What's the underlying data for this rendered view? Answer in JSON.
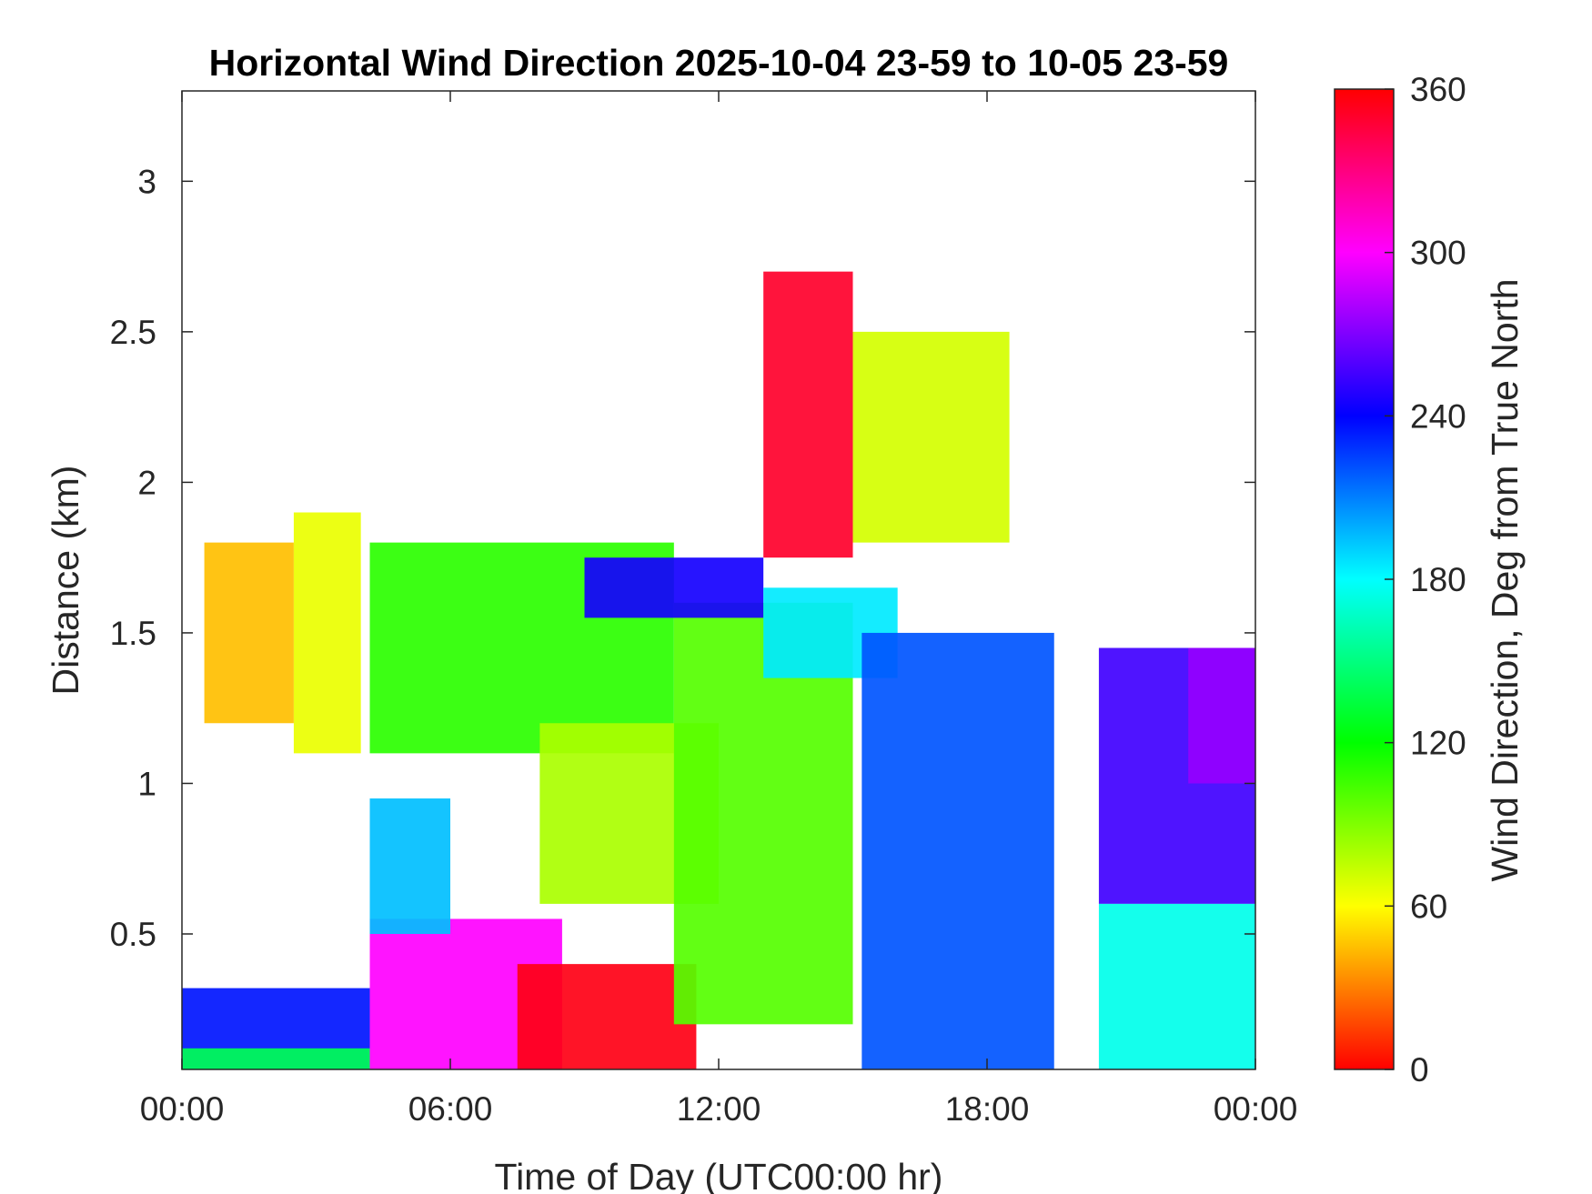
{
  "chart_data": {
    "type": "heatmap",
    "title": "Horizontal Wind Direction 2025-10-04 23-59 to 10-05 23-59",
    "xlabel": "Time of Day (UTC00:00 hr)",
    "ylabel": "Distance (km)",
    "xlim": [
      0,
      24
    ],
    "ylim": [
      0.05,
      3.3
    ],
    "x_ticks": [
      0,
      6,
      12,
      18,
      24
    ],
    "x_tick_labels": [
      "00:00",
      "06:00",
      "12:00",
      "18:00",
      "00:00"
    ],
    "y_ticks": [
      0.5,
      1,
      1.5,
      2,
      2.5,
      3
    ],
    "y_tick_labels": [
      "0.5",
      "1",
      "1.5",
      "2",
      "2.5",
      "3"
    ],
    "colorbar": {
      "label": "Wind Direction, Deg from True North",
      "range": [
        0,
        360
      ],
      "ticks": [
        0,
        60,
        120,
        180,
        240,
        300,
        360
      ],
      "tick_labels": [
        "0",
        "60",
        "120",
        "180",
        "240",
        "300",
        "360"
      ],
      "colormap": "hsv-reverse",
      "colors": [
        "#ff0000",
        "#ffff00",
        "#00ff00",
        "#00ffff",
        "#0000ff",
        "#ff00ff",
        "#ff0000"
      ]
    },
    "x_units": "hours UTC",
    "y_units": "km",
    "regions": [
      {
        "x": [
          0.0,
          4.2
        ],
        "y": [
          0.05,
          0.32
        ],
        "direction": 235
      },
      {
        "x": [
          0.0,
          4.2
        ],
        "y": [
          0.05,
          0.12
        ],
        "direction": 140
      },
      {
        "x": [
          4.2,
          8.5
        ],
        "y": [
          0.05,
          0.55
        ],
        "direction": 300
      },
      {
        "x": [
          7.5,
          11.5
        ],
        "y": [
          0.05,
          0.4
        ],
        "direction": 355
      },
      {
        "x": [
          4.2,
          6.0
        ],
        "y": [
          0.5,
          0.95
        ],
        "direction": 195
      },
      {
        "x": [
          4.2,
          11.0
        ],
        "y": [
          1.1,
          1.8
        ],
        "direction": 110
      },
      {
        "x": [
          8.0,
          12.0
        ],
        "y": [
          0.6,
          1.2
        ],
        "direction": 80
      },
      {
        "x": [
          11.0,
          15.0
        ],
        "y": [
          0.2,
          1.6
        ],
        "direction": 100
      },
      {
        "x": [
          9.0,
          13.0
        ],
        "y": [
          1.55,
          1.75
        ],
        "direction": 245
      },
      {
        "x": [
          13.0,
          16.0
        ],
        "y": [
          1.35,
          1.65
        ],
        "direction": 185
      },
      {
        "x": [
          15.2,
          19.5
        ],
        "y": [
          0.05,
          1.5
        ],
        "direction": 220
      },
      {
        "x": [
          13.0,
          15.0
        ],
        "y": [
          1.75,
          2.7
        ],
        "direction": 350
      },
      {
        "x": [
          15.0,
          18.5
        ],
        "y": [
          1.8,
          2.5
        ],
        "direction": 70
      },
      {
        "x": [
          0.5,
          2.5
        ],
        "y": [
          1.2,
          1.8
        ],
        "direction": 45
      },
      {
        "x": [
          2.5,
          4.0
        ],
        "y": [
          1.1,
          1.9
        ],
        "direction": 65
      },
      {
        "x": [
          20.5,
          24.0
        ],
        "y": [
          0.6,
          1.45
        ],
        "direction": 255
      },
      {
        "x": [
          20.5,
          24.0
        ],
        "y": [
          0.05,
          0.6
        ],
        "direction": 175
      },
      {
        "x": [
          22.5,
          24.0
        ],
        "y": [
          1.0,
          1.45
        ],
        "direction": 275
      }
    ]
  }
}
